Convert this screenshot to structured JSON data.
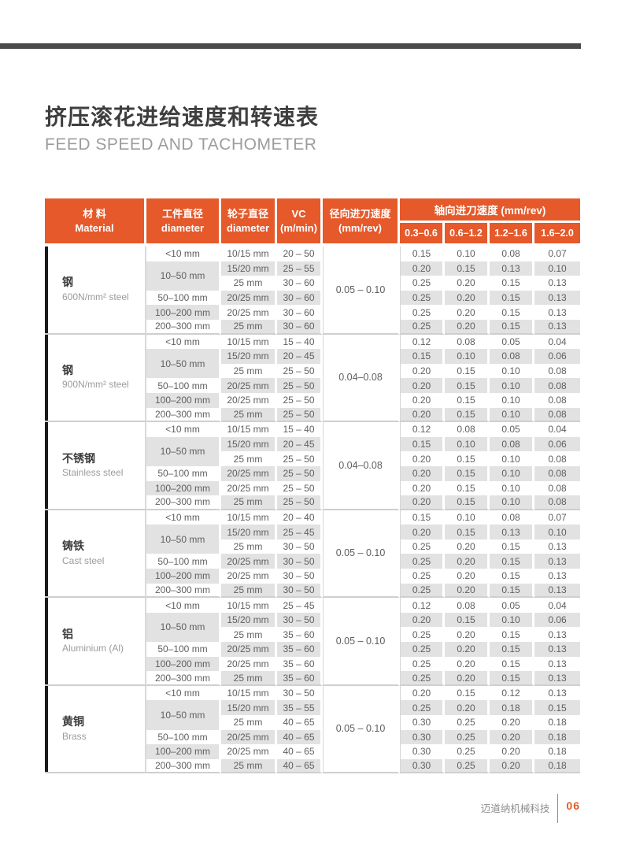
{
  "page": {
    "title_zh": "挤压滚花进给速度和转速表",
    "title_en": "FEED SPEED AND TACHOMETER",
    "footer_company": "迈道纳机械科技",
    "footer_page": "06"
  },
  "colors": {
    "accent_orange": "#E5592B",
    "stripe_gray": "#E2E2E2",
    "top_bar_gray": "#4A4A4A",
    "material_bar_black": "#1A1A1A",
    "block_divider_gray": "#CFCFCF"
  },
  "table": {
    "header": {
      "material_zh": "材  料",
      "material_en": "Material",
      "workpiece_zh": "工件直径",
      "workpiece_en": "diameter",
      "wheel_zh": "轮子直径",
      "wheel_en": "diameter",
      "vc_line1": "VC",
      "vc_line2": "(m/min)",
      "radial_line1": "径向进刀速度",
      "radial_line2": "(mm/rev)",
      "axial_group": "轴向进刀速度 (mm/rev)",
      "axial_ranges": [
        "0.3–0.6",
        "0.6–1.2",
        "1.2–1.6",
        "1.6–2.0"
      ]
    },
    "blocks": [
      {
        "material_zh": "钢",
        "material_en": "600N/mm² steel",
        "radial": "0.05 – 0.10",
        "rows": [
          {
            "workpiece": "<10 mm",
            "wheel": "10/15 mm",
            "vc": "20 – 50",
            "axial": [
              "0.15",
              "0.10",
              "0.08",
              "0.07"
            ]
          },
          {
            "workpiece": "10–50 mm",
            "span": 2,
            "wheel": "15/20 mm",
            "vc": "25 – 55",
            "axial": [
              "0.20",
              "0.15",
              "0.13",
              "0.10"
            ]
          },
          {
            "wheel": "25 mm",
            "vc": "30 – 60",
            "axial": [
              "0.25",
              "0.20",
              "0.15",
              "0.13"
            ]
          },
          {
            "workpiece": "50–100 mm",
            "wheel": "20/25 mm",
            "vc": "30 – 60",
            "axial": [
              "0.25",
              "0.20",
              "0.15",
              "0.13"
            ]
          },
          {
            "workpiece": "100–200 mm",
            "wheel": "20/25 mm",
            "vc": "30 – 60",
            "axial": [
              "0.25",
              "0.20",
              "0.15",
              "0.13"
            ]
          },
          {
            "workpiece": "200–300 mm",
            "wheel": "25 mm",
            "vc": "30 – 60",
            "axial": [
              "0.25",
              "0.20",
              "0.15",
              "0.13"
            ]
          }
        ]
      },
      {
        "material_zh": "钢",
        "material_en": "900N/mm² steel",
        "radial": "0.04–0.08",
        "rows": [
          {
            "workpiece": "<10 mm",
            "wheel": "10/15 mm",
            "vc": "15 – 40",
            "axial": [
              "0.12",
              "0.08",
              "0.05",
              "0.04"
            ]
          },
          {
            "workpiece": "10–50 mm",
            "span": 2,
            "wheel": "15/20 mm",
            "vc": "20 – 45",
            "axial": [
              "0.15",
              "0.10",
              "0.08",
              "0.06"
            ]
          },
          {
            "wheel": "25 mm",
            "vc": "25 – 50",
            "axial": [
              "0.20",
              "0.15",
              "0.10",
              "0.08"
            ]
          },
          {
            "workpiece": "50–100 mm",
            "wheel": "20/25 mm",
            "vc": "25 – 50",
            "axial": [
              "0.20",
              "0.15",
              "0.10",
              "0.08"
            ]
          },
          {
            "workpiece": "100–200 mm",
            "wheel": "20/25 mm",
            "vc": "25 – 50",
            "axial": [
              "0.20",
              "0.15",
              "0.10",
              "0.08"
            ]
          },
          {
            "workpiece": "200–300 mm",
            "wheel": "25 mm",
            "vc": "25 – 50",
            "axial": [
              "0.20",
              "0.15",
              "0.10",
              "0.08"
            ]
          }
        ]
      },
      {
        "material_zh": "不锈钢",
        "material_en": "Stainless steel",
        "radial": "0.04–0.08",
        "rows": [
          {
            "workpiece": "<10 mm",
            "wheel": "10/15 mm",
            "vc": "15 – 40",
            "axial": [
              "0.12",
              "0.08",
              "0.05",
              "0.04"
            ]
          },
          {
            "workpiece": "10–50 mm",
            "span": 2,
            "wheel": "15/20 mm",
            "vc": "20 – 45",
            "axial": [
              "0.15",
              "0.10",
              "0.08",
              "0.06"
            ]
          },
          {
            "wheel": "25 mm",
            "vc": "25 – 50",
            "axial": [
              "0.20",
              "0.15",
              "0.10",
              "0.08"
            ]
          },
          {
            "workpiece": "50–100 mm",
            "wheel": "20/25 mm",
            "vc": "25 – 50",
            "axial": [
              "0.20",
              "0.15",
              "0.10",
              "0.08"
            ]
          },
          {
            "workpiece": "100–200 mm",
            "wheel": "20/25 mm",
            "vc": "25 – 50",
            "axial": [
              "0.20",
              "0.15",
              "0.10",
              "0.08"
            ]
          },
          {
            "workpiece": "200–300 mm",
            "wheel": "25 mm",
            "vc": "25 – 50",
            "axial": [
              "0.20",
              "0.15",
              "0.10",
              "0.08"
            ]
          }
        ]
      },
      {
        "material_zh": "铸铁",
        "material_en": "Cast steel",
        "radial": "0.05 – 0.10",
        "rows": [
          {
            "workpiece": "<10 mm",
            "wheel": "10/15 mm",
            "vc": "20 – 40",
            "axial": [
              "0.15",
              "0.10",
              "0.08",
              "0.07"
            ]
          },
          {
            "workpiece": "10–50 mm",
            "span": 2,
            "wheel": "15/20 mm",
            "vc": "25 – 45",
            "axial": [
              "0.20",
              "0.15",
              "0.13",
              "0.10"
            ]
          },
          {
            "wheel": "25 mm",
            "vc": "30 – 50",
            "axial": [
              "0.25",
              "0.20",
              "0.15",
              "0.13"
            ]
          },
          {
            "workpiece": "50–100 mm",
            "wheel": "20/25 mm",
            "vc": "30 – 50",
            "axial": [
              "0.25",
              "0.20",
              "0.15",
              "0.13"
            ]
          },
          {
            "workpiece": "100–200 mm",
            "wheel": "20/25 mm",
            "vc": "30 – 50",
            "axial": [
              "0.25",
              "0.20",
              "0.15",
              "0.13"
            ]
          },
          {
            "workpiece": "200–300 mm",
            "wheel": "25 mm",
            "vc": "30 – 50",
            "axial": [
              "0.25",
              "0.20",
              "0.15",
              "0.13"
            ]
          }
        ]
      },
      {
        "material_zh": "铝",
        "material_en": "Aluminium (Al)",
        "radial": "0.05 – 0.10",
        "rows": [
          {
            "workpiece": "<10 mm",
            "wheel": "10/15 mm",
            "vc": "25 – 45",
            "axial": [
              "0.12",
              "0.08",
              "0.05",
              "0.04"
            ]
          },
          {
            "workpiece": "10–50 mm",
            "span": 2,
            "wheel": "15/20 mm",
            "vc": "30 – 50",
            "axial": [
              "0.20",
              "0.15",
              "0.10",
              "0.06"
            ]
          },
          {
            "wheel": "25 mm",
            "vc": "35 – 60",
            "axial": [
              "0.25",
              "0.20",
              "0.15",
              "0.13"
            ]
          },
          {
            "workpiece": "50–100 mm",
            "wheel": "20/25 mm",
            "vc": "35 – 60",
            "axial": [
              "0.25",
              "0.20",
              "0.15",
              "0.13"
            ]
          },
          {
            "workpiece": "100–200 mm",
            "wheel": "20/25 mm",
            "vc": "35 – 60",
            "axial": [
              "0.25",
              "0.20",
              "0.15",
              "0.13"
            ]
          },
          {
            "workpiece": "200–300 mm",
            "wheel": "25 mm",
            "vc": "35 – 60",
            "axial": [
              "0.25",
              "0.20",
              "0.15",
              "0.13"
            ]
          }
        ]
      },
      {
        "material_zh": "黄铜",
        "material_en": "Brass",
        "radial": "0.05 – 0.10",
        "rows": [
          {
            "workpiece": "<10 mm",
            "wheel": "10/15 mm",
            "vc": "30 – 50",
            "axial": [
              "0.20",
              "0.15",
              "0.12",
              "0.13"
            ]
          },
          {
            "workpiece": "10–50 mm",
            "span": 2,
            "wheel": "15/20 mm",
            "vc": "35 – 55",
            "axial": [
              "0.25",
              "0.20",
              "0.18",
              "0.15"
            ]
          },
          {
            "wheel": "25 mm",
            "vc": "40 – 65",
            "axial": [
              "0.30",
              "0.25",
              "0.20",
              "0.18"
            ]
          },
          {
            "workpiece": "50–100 mm",
            "wheel": "20/25 mm",
            "vc": "40 – 65",
            "axial": [
              "0.30",
              "0.25",
              "0.20",
              "0.18"
            ]
          },
          {
            "workpiece": "100–200 mm",
            "wheel": "20/25 mm",
            "vc": "40 – 65",
            "axial": [
              "0.30",
              "0.25",
              "0.20",
              "0.18"
            ]
          },
          {
            "workpiece": "200–300 mm",
            "wheel": "25 mm",
            "vc": "40 – 65",
            "axial": [
              "0.30",
              "0.25",
              "0.20",
              "0.18"
            ]
          }
        ]
      }
    ]
  }
}
